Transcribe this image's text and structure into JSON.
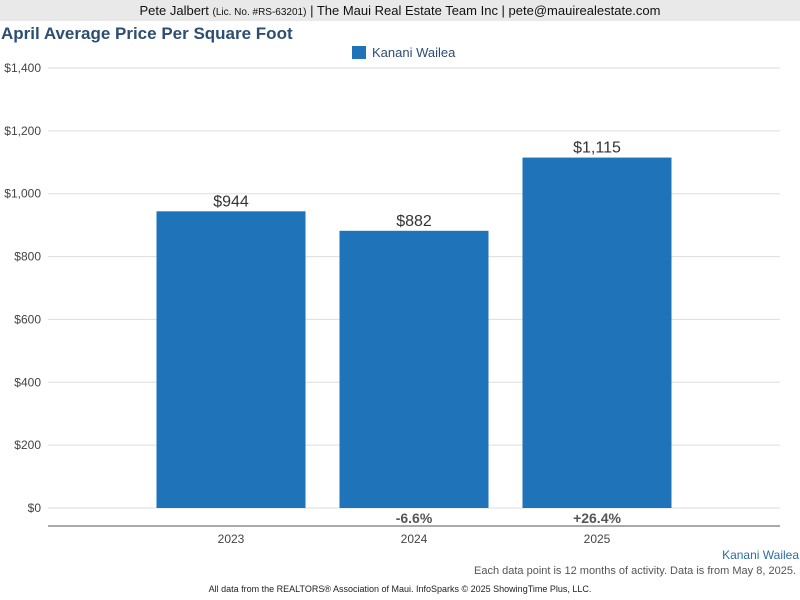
{
  "header": {
    "name": "Pete Jalbert",
    "license": "(Lic. No. #RS-63201)",
    "rest": "| The Maui Real Estate Team Inc | pete@mauirealestate.com"
  },
  "chart_data": {
    "type": "bar",
    "title": "April Average Price Per Square Foot",
    "categories": [
      "2023",
      "2024",
      "2025"
    ],
    "series": [
      {
        "name": "Kanani Wailea",
        "values": [
          944,
          882,
          1115
        ],
        "color": "#1f73b8"
      }
    ],
    "data_labels": [
      "$944",
      "$882",
      "$1,115"
    ],
    "pct_change": [
      "",
      "-6.6%",
      "+26.4%"
    ],
    "ylim": [
      0,
      1400
    ],
    "yticks": [
      0,
      200,
      400,
      600,
      800,
      1000,
      1200,
      1400
    ],
    "ytick_labels": [
      "$0",
      "$200",
      "$400",
      "$600",
      "$800",
      "$1,000",
      "$1,200",
      "$1,400"
    ],
    "grid": true,
    "legend_position": "top-center"
  },
  "footer": {
    "series_label": "Kanani Wailea",
    "note": "Each data point is 12 months of activity. Data is from May 8, 2025.",
    "source": "All data from the REALTORS® Association of Maui. InfoSparks © 2025 ShowingTime Plus, LLC."
  }
}
